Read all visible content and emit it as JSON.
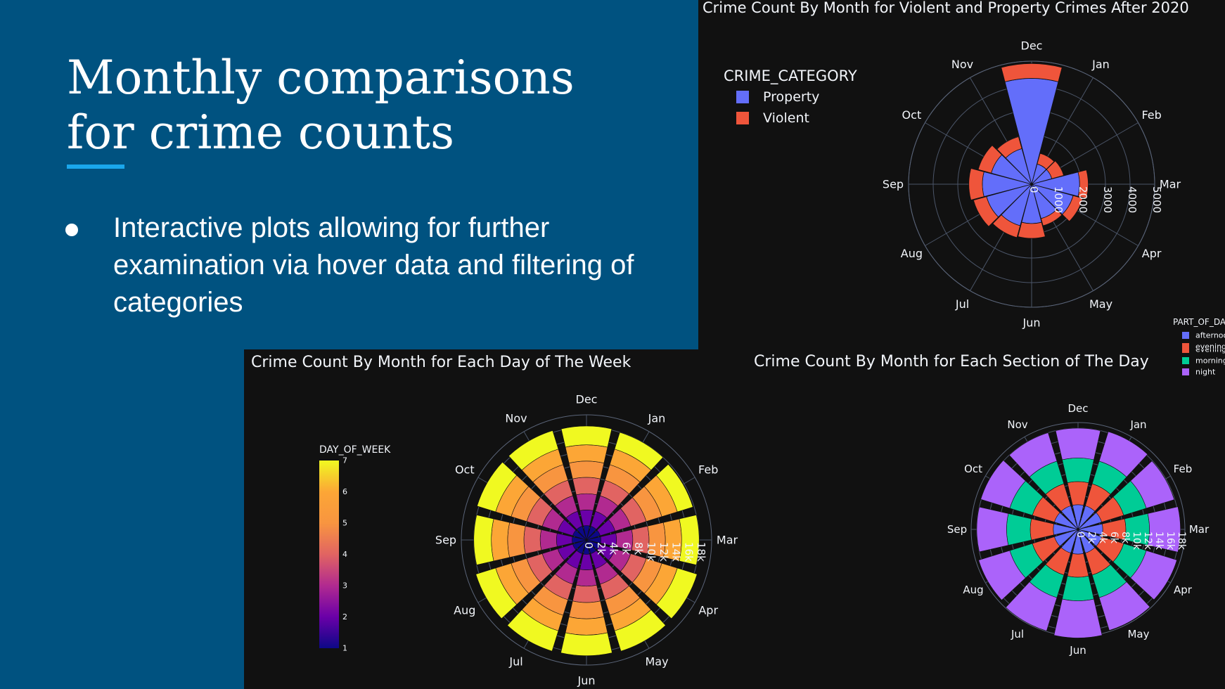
{
  "slide": {
    "title_lines": [
      "Monthly comparisons",
      "for crime counts"
    ],
    "bullet": "Interactive plots allowing for further examination via hover data and filtering of categories"
  },
  "months": [
    "Jan",
    "Feb",
    "Mar",
    "Apr",
    "May",
    "Jun",
    "Jul",
    "Aug",
    "Sep",
    "Oct",
    "Nov",
    "Dec"
  ],
  "chart_data": [
    {
      "id": "violent-property",
      "type": "bar",
      "subtype": "polar-stacked",
      "title": "Crime Count By Month for Violent and Property Crimes After 2020",
      "legend_title": "CRIME_CATEGORY",
      "legend_position": "top-left",
      "radial_range": [
        0,
        5000
      ],
      "radial_ticks": [
        0,
        1000,
        2000,
        3000,
        4000,
        5000
      ],
      "radial_tick_labels": [
        "0",
        "1000",
        "2000",
        "3000",
        "4000",
        "5000"
      ],
      "series": [
        {
          "name": "Property",
          "color": "#636efa",
          "values": [
            850,
            850,
            1950,
            1750,
            1450,
            1600,
            1750,
            1900,
            2000,
            1700,
            1500,
            4300
          ]
        },
        {
          "name": "Violent",
          "color": "#ef553b",
          "values": [
            450,
            500,
            350,
            400,
            300,
            600,
            500,
            550,
            550,
            550,
            500,
            600
          ]
        }
      ]
    },
    {
      "id": "day-of-week",
      "type": "bar",
      "subtype": "polar-stacked",
      "title": "Crime Count By Month for Each Day of The Week",
      "colorbar_title": "DAY_OF_WEEK",
      "colorbar_range": [
        1,
        7
      ],
      "colorbar_ticks": [
        "1",
        "2",
        "3",
        "4",
        "5",
        "6",
        "7"
      ],
      "radial_range": [
        0,
        20000
      ],
      "radial_ticks": [
        0,
        2000,
        4000,
        6000,
        8000,
        10000,
        12000,
        14000,
        16000,
        18000
      ],
      "radial_tick_labels": [
        "0",
        "2k",
        "4k",
        "6k",
        "8k",
        "10k",
        "12k",
        "14k",
        "16k",
        "18k"
      ],
      "series": [
        {
          "name": "1",
          "color": "#0d0887",
          "values": [
            2300,
            2300,
            2300,
            2300,
            2300,
            2300,
            2300,
            2300,
            2300,
            2300,
            2300,
            2300
          ]
        },
        {
          "name": "2",
          "color": "#6a00a8",
          "values": [
            2500,
            2500,
            2500,
            2500,
            2500,
            2500,
            2500,
            2500,
            2500,
            2500,
            2500,
            2500
          ]
        },
        {
          "name": "3",
          "color": "#b12a90",
          "values": [
            2600,
            2600,
            2600,
            2600,
            2600,
            2600,
            2600,
            2600,
            2600,
            2600,
            2600,
            2600
          ]
        },
        {
          "name": "4",
          "color": "#e16462",
          "values": [
            2600,
            2600,
            2600,
            2600,
            2600,
            2600,
            2600,
            2600,
            2600,
            2600,
            2600,
            2600
          ]
        },
        {
          "name": "5",
          "color": "#f89540",
          "values": [
            2600,
            2600,
            2600,
            2600,
            2600,
            2600,
            2600,
            2600,
            2600,
            2600,
            2600,
            2600
          ]
        },
        {
          "name": "6",
          "color": "#fca636",
          "values": [
            2600,
            2600,
            2600,
            2600,
            2600,
            2600,
            2600,
            2600,
            2600,
            2600,
            2600,
            2600
          ]
        },
        {
          "name": "7",
          "color": "#f0f921",
          "values": [
            2800,
            2600,
            2800,
            3300,
            3400,
            3300,
            3400,
            3300,
            2800,
            3100,
            3100,
            3000
          ]
        }
      ]
    },
    {
      "id": "part-of-day",
      "type": "bar",
      "subtype": "polar-stacked",
      "title": "Crime Count By Month for Each Section of The Day",
      "legend_title": "PART_OF_DA",
      "legend_position": "top-right",
      "radial_range": [
        0,
        19000
      ],
      "radial_ticks": [
        0,
        2000,
        4000,
        6000,
        8000,
        10000,
        12000,
        14000,
        16000,
        18000
      ],
      "radial_tick_labels": [
        "0",
        "2k",
        "4k",
        "6k",
        "8k",
        "10k",
        "12k",
        "14k",
        "16k",
        "18k"
      ],
      "series": [
        {
          "name": "afternoo",
          "color": "#636efa",
          "values": [
            4400,
            4400,
            4400,
            4400,
            4400,
            4400,
            4400,
            4400,
            4400,
            4400,
            4400,
            4400
          ]
        },
        {
          "name": "evening",
          "color": "#ef553b",
          "values": [
            4100,
            4100,
            4100,
            4100,
            4100,
            4100,
            4100,
            4100,
            4100,
            4100,
            4100,
            4100
          ]
        },
        {
          "name": "morning",
          "color": "#00cc96",
          "values": [
            4200,
            4200,
            4200,
            4200,
            4200,
            4200,
            4200,
            4200,
            4200,
            4200,
            4200,
            4200
          ]
        },
        {
          "name": "night",
          "color": "#ab63fa",
          "values": [
            5500,
            5200,
            5500,
            5700,
            6100,
            6600,
            6200,
            5800,
            5300,
            5400,
            5300,
            5300
          ]
        }
      ]
    }
  ]
}
